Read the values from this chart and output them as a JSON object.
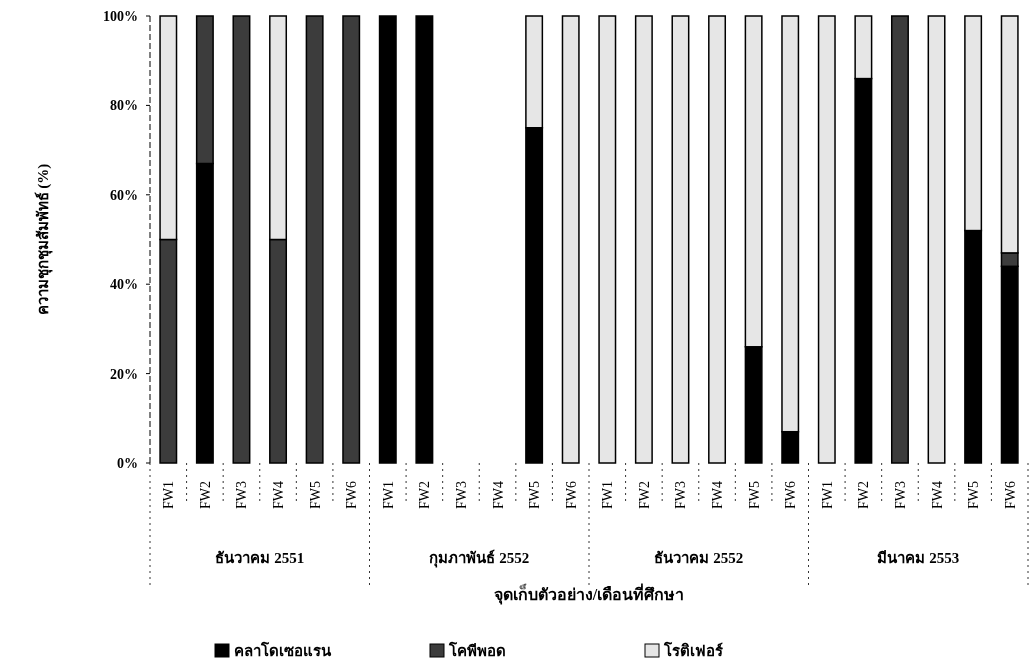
{
  "chart_data": {
    "type": "bar",
    "stacked": true,
    "ylabel": "ความชุกชุมสัมพัทธ์ (%)",
    "xlabel": "จุดเก็บตัวอย่าง/เดือนที่ศึกษา",
    "categories": [
      "FW1",
      "FW2",
      "FW3",
      "FW4",
      "FW5",
      "FW6",
      "FW1",
      "FW2",
      "FW3",
      "FW4",
      "FW5",
      "FW6",
      "FW1",
      "FW2",
      "FW3",
      "FW4",
      "FW5",
      "FW6",
      "FW1",
      "FW2",
      "FW3",
      "FW4",
      "FW5",
      "FW6"
    ],
    "annotations": [
      "ธันวาคม 2551",
      "กุมภาพันธ์ 2552",
      "ธันวาคม 2552",
      "มีนาคม 2553"
    ],
    "series": [
      {
        "name": "คลาโดเซอแรน",
        "color": "#000000",
        "values": [
          0,
          67,
          0,
          0,
          0,
          0,
          100,
          100,
          0,
          0,
          75,
          0,
          0,
          0,
          0,
          0,
          26,
          7,
          0,
          86,
          0,
          0,
          52,
          44
        ]
      },
      {
        "name": "โคพีพอด",
        "color": "#3c3c3c",
        "values": [
          50,
          33,
          100,
          50,
          100,
          100,
          0,
          0,
          0,
          0,
          0,
          0,
          0,
          0,
          0,
          0,
          0,
          0,
          0,
          0,
          100,
          0,
          0,
          3
        ]
      },
      {
        "name": "โรติเฟอร์",
        "color": "#e6e6e6",
        "values": [
          50,
          0,
          0,
          50,
          0,
          0,
          0,
          0,
          0,
          0,
          25,
          100,
          100,
          100,
          100,
          100,
          74,
          93,
          100,
          14,
          0,
          100,
          48,
          53
        ]
      }
    ],
    "ylim": [
      0,
      100
    ],
    "yticks": [
      {
        "value": 0,
        "label": "0%"
      },
      {
        "value": 20,
        "label": "20%"
      },
      {
        "value": 40,
        "label": "40%"
      },
      {
        "value": 60,
        "label": "60%"
      },
      {
        "value": 80,
        "label": "80%"
      },
      {
        "value": 100,
        "label": "100%"
      }
    ],
    "legend": "bottom",
    "grid": false
  }
}
